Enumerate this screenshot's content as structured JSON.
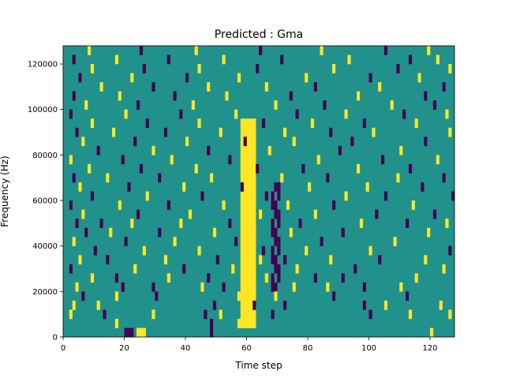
{
  "chart_data": {
    "type": "heatmap",
    "title": "Predicted : Gma",
    "xlabel": "Time step",
    "ylabel": "Frequency (Hz)",
    "xlim": [
      0,
      128
    ],
    "ylim": [
      0,
      128000
    ],
    "x_ticks": [
      0,
      20,
      40,
      60,
      80,
      100,
      120
    ],
    "y_ticks": [
      0,
      20000,
      40000,
      60000,
      80000,
      100000,
      120000
    ],
    "x_tick_labels": [
      "0",
      "20",
      "40",
      "60",
      "80",
      "100",
      "120"
    ],
    "y_tick_labels": [
      "0",
      "20000",
      "40000",
      "60000",
      "80000",
      "100000",
      "120000"
    ],
    "grid": false,
    "colormap": "viridis",
    "levels": [
      {
        "value": -1,
        "color": "#440154"
      },
      {
        "value": 0,
        "color": "#21918c"
      },
      {
        "value": 1,
        "color": "#fde725"
      }
    ],
    "background_level": 0,
    "frequency_bins": 32,
    "bin_height_hz": 4000,
    "bright_band": {
      "time_steps": [
        58,
        62
      ],
      "frequency_range": [
        4000,
        96000
      ],
      "value": 1
    },
    "dark_band": {
      "time_steps": [
        68,
        70
      ],
      "frequency_range": [
        20000,
        68000
      ],
      "value": -1
    },
    "cells": [
      [
        20,
        0,
        -1
      ],
      [
        21,
        0,
        -1
      ],
      [
        22,
        0,
        -1
      ],
      [
        24,
        0,
        1
      ],
      [
        25,
        0,
        1
      ],
      [
        26,
        0,
        1
      ],
      [
        48,
        0,
        -1
      ],
      [
        120,
        0,
        1
      ],
      [
        17,
        1,
        1
      ],
      [
        48,
        1,
        -1
      ],
      [
        57,
        1,
        1
      ],
      [
        13,
        2,
        -1
      ],
      [
        29,
        2,
        1
      ],
      [
        46,
        2,
        -1
      ],
      [
        51,
        2,
        1
      ],
      [
        68,
        2,
        -1
      ],
      [
        100,
        2,
        -1
      ],
      [
        113,
        2,
        1
      ],
      [
        126,
        2,
        1
      ],
      [
        2,
        2,
        1
      ],
      [
        3,
        3,
        1
      ],
      [
        11,
        3,
        1
      ],
      [
        49,
        3,
        -1
      ],
      [
        62,
        3,
        -1
      ],
      [
        72,
        3,
        -1
      ],
      [
        98,
        3,
        -1
      ],
      [
        105,
        3,
        1
      ],
      [
        123,
        3,
        1
      ],
      [
        6,
        4,
        -1
      ],
      [
        17,
        4,
        1
      ],
      [
        30,
        4,
        -1
      ],
      [
        57,
        4,
        1
      ],
      [
        69,
        4,
        1
      ],
      [
        88,
        4,
        -1
      ],
      [
        112,
        4,
        -1
      ],
      [
        4,
        5,
        1
      ],
      [
        19,
        5,
        -1
      ],
      [
        29,
        5,
        -1
      ],
      [
        45,
        5,
        1
      ],
      [
        52,
        5,
        -1
      ],
      [
        75,
        5,
        1
      ],
      [
        86,
        5,
        1
      ],
      [
        98,
        5,
        -1
      ],
      [
        110,
        5,
        1
      ],
      [
        9,
        6,
        1
      ],
      [
        17,
        6,
        -1
      ],
      [
        34,
        6,
        1
      ],
      [
        47,
        6,
        -1
      ],
      [
        66,
        6,
        1
      ],
      [
        82,
        6,
        -1
      ],
      [
        91,
        6,
        -1
      ],
      [
        115,
        6,
        1
      ],
      [
        2,
        7,
        -1
      ],
      [
        23,
        7,
        1
      ],
      [
        39,
        7,
        -1
      ],
      [
        55,
        7,
        1
      ],
      [
        76,
        7,
        1
      ],
      [
        95,
        7,
        -1
      ],
      [
        124,
        7,
        1
      ],
      [
        5,
        8,
        1
      ],
      [
        14,
        8,
        -1
      ],
      [
        33,
        8,
        1
      ],
      [
        50,
        8,
        -1
      ],
      [
        64,
        8,
        1
      ],
      [
        72,
        8,
        -1
      ],
      [
        87,
        8,
        1
      ],
      [
        103,
        8,
        -1
      ],
      [
        118,
        8,
        1
      ],
      [
        10,
        9,
        -1
      ],
      [
        26,
        9,
        1
      ],
      [
        44,
        9,
        1
      ],
      [
        65,
        9,
        -1
      ],
      [
        79,
        9,
        1
      ],
      [
        100,
        9,
        1
      ],
      [
        126,
        9,
        -1
      ],
      [
        3,
        10,
        1
      ],
      [
        20,
        10,
        -1
      ],
      [
        36,
        10,
        1
      ],
      [
        56,
        10,
        -1
      ],
      [
        84,
        10,
        -1
      ],
      [
        108,
        10,
        1
      ],
      [
        7,
        11,
        -1
      ],
      [
        15,
        11,
        1
      ],
      [
        31,
        11,
        -1
      ],
      [
        49,
        11,
        1
      ],
      [
        74,
        11,
        1
      ],
      [
        91,
        11,
        -1
      ],
      [
        119,
        11,
        1
      ],
      [
        4,
        12,
        -1
      ],
      [
        12,
        12,
        -1
      ],
      [
        22,
        12,
        1
      ],
      [
        38,
        12,
        1
      ],
      [
        54,
        12,
        -1
      ],
      [
        77,
        12,
        -1
      ],
      [
        97,
        12,
        1
      ],
      [
        112,
        12,
        -1
      ],
      [
        125,
        12,
        1
      ],
      [
        6,
        13,
        1
      ],
      [
        24,
        13,
        -1
      ],
      [
        41,
        13,
        1
      ],
      [
        64,
        13,
        1
      ],
      [
        82,
        13,
        1
      ],
      [
        102,
        13,
        -1
      ],
      [
        121,
        13,
        -1
      ],
      [
        2,
        14,
        -1
      ],
      [
        18,
        14,
        1
      ],
      [
        34,
        14,
        -1
      ],
      [
        52,
        14,
        1
      ],
      [
        73,
        14,
        1
      ],
      [
        88,
        14,
        -1
      ],
      [
        114,
        14,
        1
      ],
      [
        9,
        15,
        -1
      ],
      [
        27,
        15,
        1
      ],
      [
        45,
        15,
        -1
      ],
      [
        66,
        15,
        -1
      ],
      [
        92,
        15,
        1
      ],
      [
        105,
        15,
        -1
      ],
      [
        127,
        15,
        -1
      ],
      [
        5,
        16,
        1
      ],
      [
        21,
        16,
        -1
      ],
      [
        39,
        16,
        1
      ],
      [
        58,
        16,
        -1
      ],
      [
        80,
        16,
        1
      ],
      [
        99,
        16,
        1
      ],
      [
        117,
        16,
        -1
      ],
      [
        3,
        17,
        -1
      ],
      [
        14,
        17,
        1
      ],
      [
        31,
        17,
        -1
      ],
      [
        48,
        17,
        1
      ],
      [
        71,
        17,
        1
      ],
      [
        86,
        17,
        -1
      ],
      [
        109,
        17,
        1
      ],
      [
        124,
        17,
        -1
      ],
      [
        8,
        18,
        1
      ],
      [
        25,
        18,
        -1
      ],
      [
        43,
        18,
        1
      ],
      [
        63,
        18,
        -1
      ],
      [
        78,
        18,
        -1
      ],
      [
        96,
        18,
        1
      ],
      [
        113,
        18,
        -1
      ],
      [
        2,
        19,
        1
      ],
      [
        19,
        19,
        -1
      ],
      [
        35,
        19,
        1
      ],
      [
        54,
        19,
        -1
      ],
      [
        83,
        19,
        1
      ],
      [
        104,
        19,
        -1
      ],
      [
        122,
        19,
        1
      ],
      [
        11,
        20,
        -1
      ],
      [
        29,
        20,
        1
      ],
      [
        47,
        20,
        -1
      ],
      [
        67,
        20,
        1
      ],
      [
        90,
        20,
        -1
      ],
      [
        110,
        20,
        1
      ],
      [
        6,
        21,
        1
      ],
      [
        23,
        21,
        -1
      ],
      [
        40,
        21,
        1
      ],
      [
        59,
        21,
        -1
      ],
      [
        75,
        21,
        1
      ],
      [
        94,
        21,
        -1
      ],
      [
        118,
        21,
        -1
      ],
      [
        4,
        22,
        -1
      ],
      [
        16,
        22,
        1
      ],
      [
        33,
        22,
        -1
      ],
      [
        51,
        22,
        1
      ],
      [
        72,
        22,
        1
      ],
      [
        87,
        22,
        -1
      ],
      [
        101,
        22,
        1
      ],
      [
        126,
        22,
        1
      ],
      [
        9,
        23,
        1
      ],
      [
        27,
        23,
        -1
      ],
      [
        44,
        23,
        1
      ],
      [
        65,
        23,
        -1
      ],
      [
        81,
        23,
        1
      ],
      [
        98,
        23,
        -1
      ],
      [
        115,
        23,
        1
      ],
      [
        2,
        24,
        -1
      ],
      [
        20,
        24,
        1
      ],
      [
        38,
        24,
        -1
      ],
      [
        56,
        24,
        1
      ],
      [
        76,
        24,
        -1
      ],
      [
        92,
        24,
        1
      ],
      [
        111,
        24,
        -1
      ],
      [
        125,
        24,
        1
      ],
      [
        7,
        25,
        1
      ],
      [
        24,
        25,
        -1
      ],
      [
        42,
        25,
        1
      ],
      [
        69,
        25,
        1
      ],
      [
        85,
        25,
        -1
      ],
      [
        107,
        25,
        1
      ],
      [
        121,
        25,
        -1
      ],
      [
        3,
        26,
        -1
      ],
      [
        18,
        26,
        1
      ],
      [
        36,
        26,
        -1
      ],
      [
        53,
        26,
        1
      ],
      [
        74,
        26,
        -1
      ],
      [
        96,
        26,
        1
      ],
      [
        118,
        26,
        -1
      ],
      [
        12,
        27,
        1
      ],
      [
        29,
        27,
        -1
      ],
      [
        47,
        27,
        1
      ],
      [
        66,
        27,
        1
      ],
      [
        82,
        27,
        -1
      ],
      [
        103,
        27,
        1
      ],
      [
        124,
        27,
        -1
      ],
      [
        5,
        28,
        -1
      ],
      [
        22,
        28,
        1
      ],
      [
        40,
        28,
        -1
      ],
      [
        57,
        28,
        1
      ],
      [
        79,
        28,
        1
      ],
      [
        100,
        28,
        -1
      ],
      [
        116,
        28,
        1
      ],
      [
        9,
        29,
        1
      ],
      [
        26,
        29,
        -1
      ],
      [
        44,
        29,
        1
      ],
      [
        63,
        29,
        -1
      ],
      [
        88,
        29,
        1
      ],
      [
        109,
        29,
        -1
      ],
      [
        126,
        29,
        1
      ],
      [
        3,
        30,
        -1
      ],
      [
        17,
        30,
        1
      ],
      [
        34,
        30,
        -1
      ],
      [
        52,
        30,
        1
      ],
      [
        71,
        30,
        -1
      ],
      [
        93,
        30,
        1
      ],
      [
        113,
        30,
        -1
      ],
      [
        122,
        30,
        1
      ],
      [
        8,
        31,
        1
      ],
      [
        25,
        31,
        -1
      ],
      [
        43,
        31,
        1
      ],
      [
        64,
        31,
        -1
      ],
      [
        84,
        31,
        1
      ],
      [
        105,
        31,
        -1
      ],
      [
        119,
        31,
        1
      ]
    ]
  }
}
